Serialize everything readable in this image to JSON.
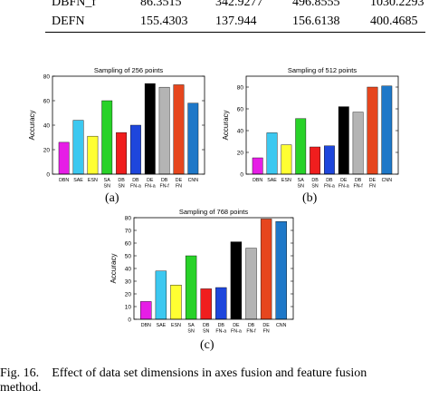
{
  "table": {
    "rows": [
      {
        "label": "DBFN_f",
        "values": [
          "86.3515",
          "342.9277",
          "496.8555",
          "1030.2293"
        ]
      },
      {
        "label": "DEFN",
        "values": [
          "155.4303",
          "137.944",
          "156.6138",
          "400.4685"
        ]
      }
    ]
  },
  "chart_data": [
    {
      "type": "bar",
      "title": "Sampling of 256 points",
      "ylabel": "Accuracy",
      "ylim": [
        0,
        80
      ],
      "yticks": [
        0,
        20,
        40,
        60,
        80
      ],
      "categories": [
        [
          "DBN"
        ],
        [
          "SAE"
        ],
        [
          "ESN"
        ],
        [
          "SA",
          "SN"
        ],
        [
          "DB",
          "SN"
        ],
        [
          "DB",
          "FN-a"
        ],
        [
          "DE",
          "FN-a"
        ],
        [
          "DB",
          "FN-f"
        ],
        [
          "DE",
          "FN"
        ],
        [
          "CNN"
        ]
      ],
      "values": [
        26,
        44,
        31,
        60,
        34,
        40,
        74,
        71,
        73,
        58
      ],
      "colors": [
        "#e61ee6",
        "#3cc8f0",
        "#ffff32",
        "#28d228",
        "#f01e1e",
        "#1e46dc",
        "#000000",
        "#b4b4b4",
        "#e6461e",
        "#1e78c8"
      ],
      "sublabel": "(a)"
    },
    {
      "type": "bar",
      "title": "Sampling of 512 points",
      "ylabel": "Accuracy",
      "ylim": [
        0,
        90
      ],
      "yticks": [
        0,
        20,
        40,
        60,
        80
      ],
      "categories": [
        [
          "DBN"
        ],
        [
          "SAE"
        ],
        [
          "ESN"
        ],
        [
          "SA",
          "SN"
        ],
        [
          "DB",
          "SN"
        ],
        [
          "DB",
          "FN-a"
        ],
        [
          "DE",
          "FN-a"
        ],
        [
          "DB",
          "FN-f"
        ],
        [
          "DE",
          "FN"
        ],
        [
          "CNN"
        ]
      ],
      "values": [
        15,
        38,
        27,
        51,
        25,
        26,
        62,
        57,
        80,
        81
      ],
      "colors": [
        "#e61ee6",
        "#3cc8f0",
        "#ffff32",
        "#28d228",
        "#f01e1e",
        "#1e46dc",
        "#000000",
        "#b4b4b4",
        "#e6461e",
        "#1e78c8"
      ],
      "sublabel": "(b)"
    },
    {
      "type": "bar",
      "title": "Sampling of 768 points",
      "ylabel": "Accuracy",
      "ylim": [
        0,
        80
      ],
      "yticks": [
        0,
        10,
        20,
        30,
        40,
        50,
        60,
        70,
        80
      ],
      "categories": [
        [
          "DBN"
        ],
        [
          "SAE"
        ],
        [
          "ESN"
        ],
        [
          "SA",
          "SN"
        ],
        [
          "DB",
          "SN"
        ],
        [
          "DB",
          "FN-a"
        ],
        [
          "DE",
          "FN-a"
        ],
        [
          "DB",
          "FN-f"
        ],
        [
          "DE",
          "FN"
        ],
        [
          "CNN"
        ]
      ],
      "values": [
        14,
        38,
        27,
        50,
        24,
        25,
        61,
        56,
        79,
        77
      ],
      "colors": [
        "#e61ee6",
        "#3cc8f0",
        "#ffff32",
        "#28d228",
        "#f01e1e",
        "#1e46dc",
        "#000000",
        "#b4b4b4",
        "#e6461e",
        "#1e78c8"
      ],
      "sublabel": "(c)"
    }
  ],
  "caption": {
    "label": "Fig. 16.",
    "text": "Effect of data set dimensions in axes fusion and feature fusion",
    "line2": "method."
  }
}
